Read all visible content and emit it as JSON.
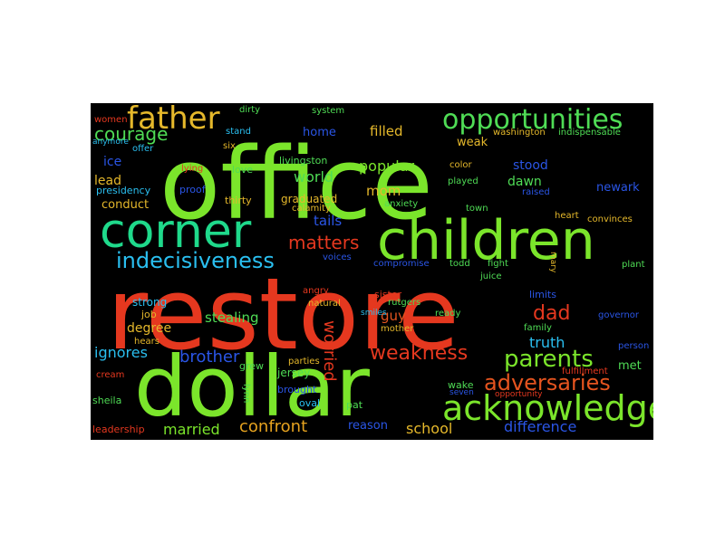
{
  "cloud": {
    "background": "#000000",
    "words": [
      {
        "text": "office",
        "color": "#7be52b"
      },
      {
        "text": "restore",
        "color": "#e5381f"
      },
      {
        "text": "dollar",
        "color": "#7be52b"
      },
      {
        "text": "children",
        "color": "#7be52b"
      },
      {
        "text": "corner",
        "color": "#1fd98b"
      },
      {
        "text": "acknowledge",
        "color": "#7be52b"
      },
      {
        "text": "opportunities",
        "color": "#4fdc55"
      },
      {
        "text": "father",
        "color": "#e5b82b"
      },
      {
        "text": "indecisiveness",
        "color": "#2abff0"
      },
      {
        "text": "parents",
        "color": "#7be52b"
      },
      {
        "text": "adversaries",
        "color": "#e5541f"
      },
      {
        "text": "weakness",
        "color": "#e5381f"
      },
      {
        "text": "matters",
        "color": "#e5381f"
      },
      {
        "text": "dad",
        "color": "#e5381f"
      },
      {
        "text": "worried",
        "color": "#e5381f"
      },
      {
        "text": "courage",
        "color": "#4fdc55"
      },
      {
        "text": "brother",
        "color": "#2a55e5"
      },
      {
        "text": "popular",
        "color": "#7be52b"
      },
      {
        "text": "married",
        "color": "#7be52b"
      },
      {
        "text": "confront",
        "color": "#e5a21f"
      },
      {
        "text": "difference",
        "color": "#2a55e5"
      },
      {
        "text": "school",
        "color": "#e5b82b"
      },
      {
        "text": "truth",
        "color": "#2abff0"
      },
      {
        "text": "world",
        "color": "#4fdc55"
      },
      {
        "text": "ignores",
        "color": "#2abff0"
      },
      {
        "text": "stealing",
        "color": "#4fdc55"
      },
      {
        "text": "tails",
        "color": "#2a55e5"
      },
      {
        "text": "filled",
        "color": "#e5b82b"
      },
      {
        "text": "mom",
        "color": "#e5b82b"
      },
      {
        "text": "guy",
        "color": "#e5541f"
      },
      {
        "text": "degree",
        "color": "#e5b82b"
      },
      {
        "text": "reason",
        "color": "#2a55e5"
      },
      {
        "text": "dawn",
        "color": "#4fdc55"
      },
      {
        "text": "stood",
        "color": "#2a55e5"
      },
      {
        "text": "newark",
        "color": "#2a55e5"
      },
      {
        "text": "weak",
        "color": "#e5b82b"
      },
      {
        "text": "lead",
        "color": "#e5b82b"
      },
      {
        "text": "met",
        "color": "#4fdc55"
      },
      {
        "text": "ice",
        "color": "#2a55e5"
      },
      {
        "text": "home",
        "color": "#2a55e5"
      },
      {
        "text": "conduct",
        "color": "#e5b82b"
      },
      {
        "text": "strong",
        "color": "#2abff0"
      },
      {
        "text": "sister",
        "color": "#e5381f"
      },
      {
        "text": "job",
        "color": "#e5b82b"
      },
      {
        "text": "sheila",
        "color": "#4fdc55"
      },
      {
        "text": "leadership",
        "color": "#e5381f"
      },
      {
        "text": "women",
        "color": "#e5381f"
      },
      {
        "text": "anymore",
        "color": "#2abff0"
      },
      {
        "text": "presidency",
        "color": "#2abff0"
      },
      {
        "text": "offer",
        "color": "#2abff0"
      },
      {
        "text": "six",
        "color": "#e5b82b"
      },
      {
        "text": "stand",
        "color": "#2abff0"
      },
      {
        "text": "dirty",
        "color": "#4fdc55"
      },
      {
        "text": "system",
        "color": "#4fdc55"
      },
      {
        "text": "livingston",
        "color": "#4fdc55"
      },
      {
        "text": "washington",
        "color": "#e5b82b"
      },
      {
        "text": "indispensable",
        "color": "#4fdc55"
      },
      {
        "text": "color",
        "color": "#e5b82b"
      },
      {
        "text": "played",
        "color": "#4fdc55"
      },
      {
        "text": "raised",
        "color": "#2a55e5"
      },
      {
        "text": "lying",
        "color": "#e5381f"
      },
      {
        "text": "love",
        "color": "#4fdc55"
      },
      {
        "text": "proof",
        "color": "#2a55e5"
      },
      {
        "text": "thirty",
        "color": "#e5b82b"
      },
      {
        "text": "graduated",
        "color": "#e5b82b"
      },
      {
        "text": "calamity",
        "color": "#e5b82b"
      },
      {
        "text": "anxiety",
        "color": "#4fdc55"
      },
      {
        "text": "town",
        "color": "#4fdc55"
      },
      {
        "text": "heart",
        "color": "#e5b82b"
      },
      {
        "text": "convinces",
        "color": "#e5b82b"
      },
      {
        "text": "voices",
        "color": "#2a55e5"
      },
      {
        "text": "compromise",
        "color": "#2a55e5"
      },
      {
        "text": "todd",
        "color": "#4fdc55"
      },
      {
        "text": "fight",
        "color": "#4fdc55"
      },
      {
        "text": "mary",
        "color": "#e5b82b"
      },
      {
        "text": "plant",
        "color": "#4fdc55"
      },
      {
        "text": "juice",
        "color": "#4fdc55"
      },
      {
        "text": "limits",
        "color": "#2a55e5"
      },
      {
        "text": "angry",
        "color": "#e5381f"
      },
      {
        "text": "natural",
        "color": "#e5b82b"
      },
      {
        "text": "rutgers",
        "color": "#4fdc55"
      },
      {
        "text": "ready",
        "color": "#4fdc55"
      },
      {
        "text": "governor",
        "color": "#2a55e5"
      },
      {
        "text": "family",
        "color": "#4fdc55"
      },
      {
        "text": "mother",
        "color": "#e5b82b"
      },
      {
        "text": "hears",
        "color": "#e5b82b"
      },
      {
        "text": "person",
        "color": "#2a55e5"
      },
      {
        "text": "cream",
        "color": "#e5381f"
      },
      {
        "text": "grew",
        "color": "#4fdc55"
      },
      {
        "text": "parties",
        "color": "#e5b82b"
      },
      {
        "text": "jersey",
        "color": "#4fdc55"
      },
      {
        "text": "lynn",
        "color": "#4fdc55"
      },
      {
        "text": "brought",
        "color": "#2a55e5"
      },
      {
        "text": "oval",
        "color": "#2abff0"
      },
      {
        "text": "pat",
        "color": "#4fdc55"
      },
      {
        "text": "wake",
        "color": "#4fdc55"
      },
      {
        "text": "seven",
        "color": "#2a55e5"
      },
      {
        "text": "opportunity",
        "color": "#e5381f"
      },
      {
        "text": "fulfillment",
        "color": "#e5381f"
      },
      {
        "text": "smiles",
        "color": "#2abff0"
      }
    ]
  }
}
